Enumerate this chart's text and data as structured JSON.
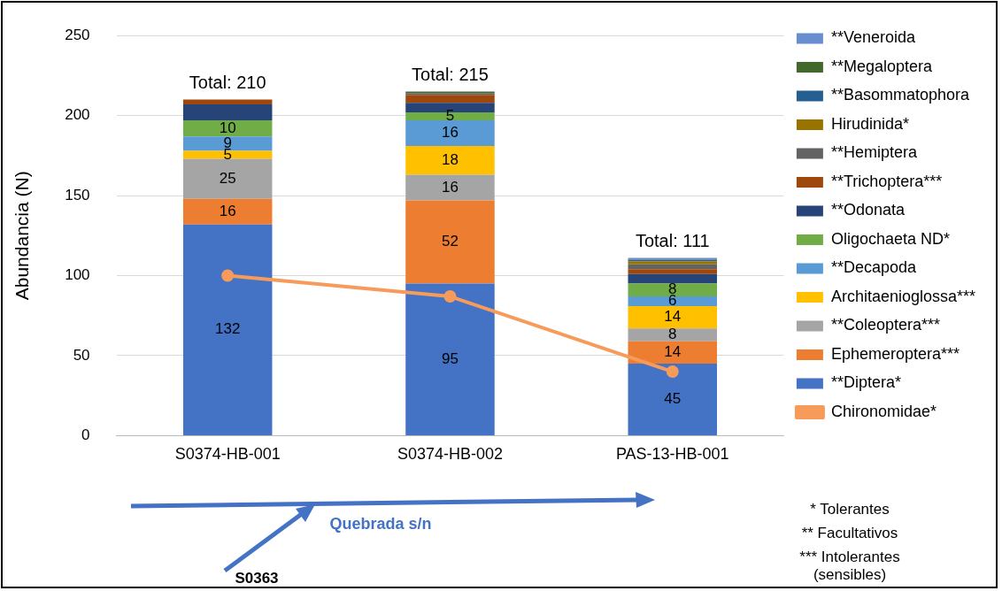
{
  "chart_data": {
    "type": "bar",
    "stacked": true,
    "ylabel": "Abundancia (N)",
    "categories": [
      "S0374-HB-001",
      "S0374-HB-002",
      "PAS-13-HB-001"
    ],
    "ylim": [
      0,
      250
    ],
    "yticks": [
      0,
      50,
      100,
      150,
      200,
      250
    ],
    "grid": "y",
    "legend": "right",
    "marker": "circle",
    "series": [
      {
        "name": "Chironomidae*",
        "type": "line",
        "color": "#f79b5b",
        "values": [
          100,
          87,
          40
        ]
      },
      {
        "name": "**Diptera*",
        "color": "#4472c4",
        "values": [
          132,
          95,
          45
        ],
        "value_labels": [
          "132",
          "95",
          "45"
        ]
      },
      {
        "name": "Ephemeroptera***",
        "color": "#ed7d31",
        "values": [
          16,
          52,
          14
        ],
        "value_labels": [
          "16",
          "52",
          "14"
        ]
      },
      {
        "name": "**Coleoptera***",
        "color": "#a5a5a5",
        "values": [
          25,
          16,
          8
        ],
        "value_labels": [
          "25",
          "16",
          "8"
        ]
      },
      {
        "name": "Architaenioglossa***",
        "color": "#ffc000",
        "values": [
          5,
          18,
          14
        ],
        "value_labels": [
          "5",
          "18",
          "14"
        ]
      },
      {
        "name": "**Decapoda",
        "color": "#5b9bd5",
        "values": [
          9,
          16,
          6
        ],
        "value_labels": [
          "9",
          "16",
          "6"
        ]
      },
      {
        "name": "Oligochaeta ND*",
        "color": "#70ad47",
        "values": [
          10,
          5,
          8
        ],
        "value_labels": [
          "10",
          "5",
          "8"
        ]
      },
      {
        "name": "**Odonata",
        "color": "#264478",
        "values": [
          10,
          6,
          6
        ]
      },
      {
        "name": "**Trichoptera***",
        "color": "#9e480e",
        "values": [
          3,
          5,
          3
        ]
      },
      {
        "name": "**Hemiptera",
        "color": "#636363",
        "values": [
          null,
          1,
          3
        ]
      },
      {
        "name": "Hirudinida*",
        "color": "#997300",
        "values": [
          null,
          null,
          2
        ]
      },
      {
        "name": "**Basommatophora",
        "color": "#255e91",
        "values": [
          null,
          null,
          1
        ]
      },
      {
        "name": "**Megaloptera",
        "color": "#43682b",
        "values": [
          null,
          1,
          null
        ]
      },
      {
        "name": "**Veneroida",
        "color": "#698ed0",
        "values": [
          null,
          null,
          1
        ]
      }
    ],
    "totals": [
      "Total: 210",
      "Total: 215",
      "Total: 111"
    ],
    "annotations": [
      "Quebrada s/n",
      "S0363",
      "* Tolerantes",
      "** Facultativos",
      "*** Intolerantes (sensibles)"
    ]
  }
}
